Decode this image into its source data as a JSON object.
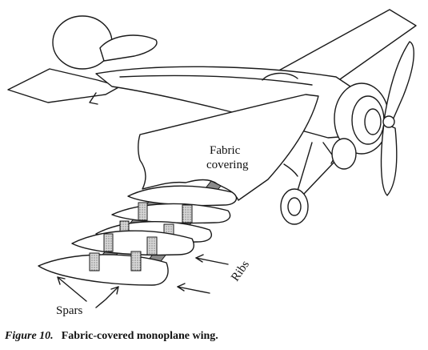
{
  "labels": {
    "fabric_line1": "Fabric",
    "fabric_line2": "covering",
    "ribs": "Ribs",
    "spars": "Spars"
  },
  "caption": {
    "figure_number": "Figure 10.",
    "text": "Fabric-covered monoplane wing."
  }
}
